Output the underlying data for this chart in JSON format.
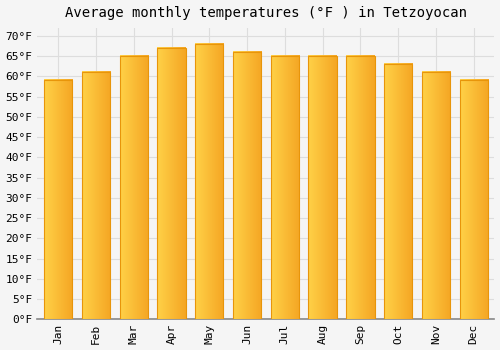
{
  "title": "Average monthly temperatures (°F ) in Tetzoyocan",
  "months": [
    "Jan",
    "Feb",
    "Mar",
    "Apr",
    "May",
    "Jun",
    "Jul",
    "Aug",
    "Sep",
    "Oct",
    "Nov",
    "Dec"
  ],
  "values": [
    59,
    61,
    65,
    67,
    68,
    66,
    65,
    65,
    65,
    63,
    61,
    59
  ],
  "bar_color_left": "#FFD04A",
  "bar_color_right": "#F5A623",
  "bar_edge_color": "#E8950A",
  "background_color": "#F5F5F5",
  "plot_bg_color": "#F5F5F5",
  "grid_color": "#DDDDDD",
  "ytick_labels": [
    "0°F",
    "5°F",
    "10°F",
    "15°F",
    "20°F",
    "25°F",
    "30°F",
    "35°F",
    "40°F",
    "45°F",
    "50°F",
    "55°F",
    "60°F",
    "65°F",
    "70°F"
  ],
  "ytick_values": [
    0,
    5,
    10,
    15,
    20,
    25,
    30,
    35,
    40,
    45,
    50,
    55,
    60,
    65,
    70
  ],
  "ylim": [
    0,
    72
  ],
  "title_fontsize": 10,
  "tick_fontsize": 8,
  "font_family": "monospace",
  "bar_width": 0.75,
  "gradient_steps": 50
}
